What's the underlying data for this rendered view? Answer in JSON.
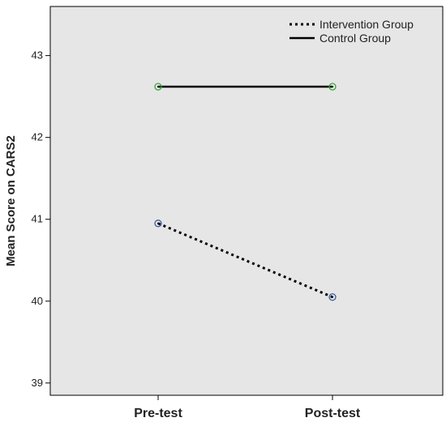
{
  "chart_data": {
    "type": "line",
    "categories": [
      "Pre-test",
      "Post-test"
    ],
    "ylabel": "Mean Score on CARS2",
    "xlabel": "",
    "ylim": [
      38.85,
      43.6
    ],
    "yticks": [
      39,
      40,
      41,
      42,
      43
    ],
    "grid": false,
    "legend_position": "top-right",
    "background_color": "#e6e6e6",
    "series": [
      {
        "name": "Intervention Group",
        "values": [
          40.95,
          40.05
        ],
        "line_style": "dotted",
        "line_color": "#000000",
        "marker_color": "#3b5ba5"
      },
      {
        "name": "Control Group",
        "values": [
          42.62,
          42.62
        ],
        "line_style": "solid",
        "line_color": "#000000",
        "marker_color": "#3aa63a"
      }
    ]
  }
}
